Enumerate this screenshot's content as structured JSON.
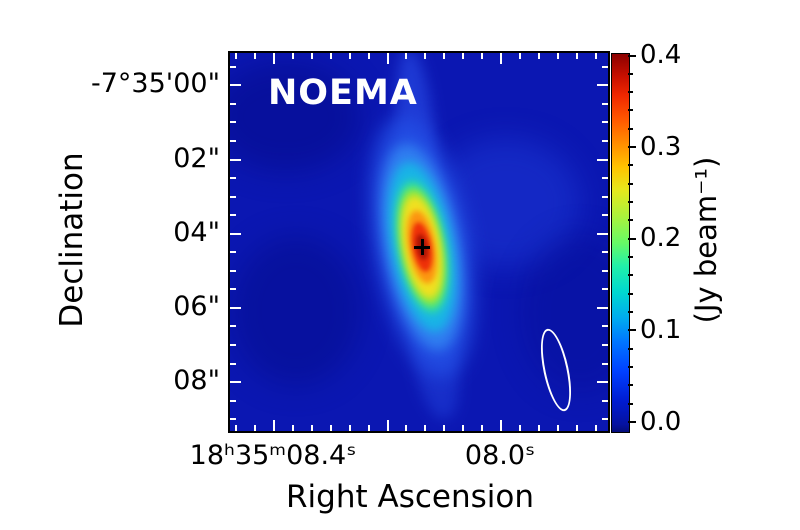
{
  "figure": {
    "instrument_label": "NOEMA",
    "x_axis": {
      "label": "Right Ascension",
      "tick_labels": [
        "18ʰ35ᵐ08.4ˢ",
        "08.0ˢ"
      ]
    },
    "y_axis": {
      "label": "Declination",
      "tick_labels": [
        "-7°35'00\"",
        "02\"",
        "04\"",
        "06\"",
        "08\""
      ]
    },
    "colorbar": {
      "label": "(Jy beam⁻¹)",
      "tick_labels": [
        "0.4",
        "0.3",
        "0.2",
        "0.1",
        "0.0"
      ]
    }
  },
  "chart_data": {
    "type": "heatmap",
    "title": "",
    "instrument": "NOEMA",
    "xlabel": "Right Ascension",
    "ylabel": "Declination",
    "x_tick_labels": [
      "18h35m08.4s",
      "08.0s"
    ],
    "y_tick_labels": [
      "-7°35'00\"",
      "02\"",
      "04\"",
      "06\"",
      "08\""
    ],
    "x_major_tick_step_seconds": 0.2,
    "y_major_tick_step_arcsec": 2,
    "colormap": "jet",
    "colorbar": {
      "label": "(Jy beam⁻¹)",
      "ticks": [
        0.0,
        0.1,
        0.2,
        0.3,
        0.4
      ],
      "range": [
        0.0,
        0.4
      ],
      "unit": "Jy beam^-1",
      "orientation": "vertical-right"
    },
    "features": {
      "source_peak_marker": {
        "symbol": "+",
        "color": "black",
        "ra_approx": "18h35m08.15s",
        "dec_approx": "-7°35'04.3\""
      },
      "peak_intensity_jy_per_beam_approx": 0.4,
      "source_shape": "single compact elongated Gaussian-like source, major axis roughly N-S tilted ~10°",
      "beam_ellipse": {
        "location": "bottom-right",
        "outline_color": "white"
      }
    },
    "axis_orientation": {
      "x": "RA decreasing to the right",
      "y": "Dec decreasing downward"
    },
    "grid": false
  },
  "colors": {
    "map_background": "#0b17b2",
    "frame": "#000000",
    "inner_ticks": "#ffffff",
    "colorbar_ticks": "#000000",
    "beam_outline": "#ffffff",
    "instrument_text": "#ffffff",
    "marker": "#000000"
  }
}
